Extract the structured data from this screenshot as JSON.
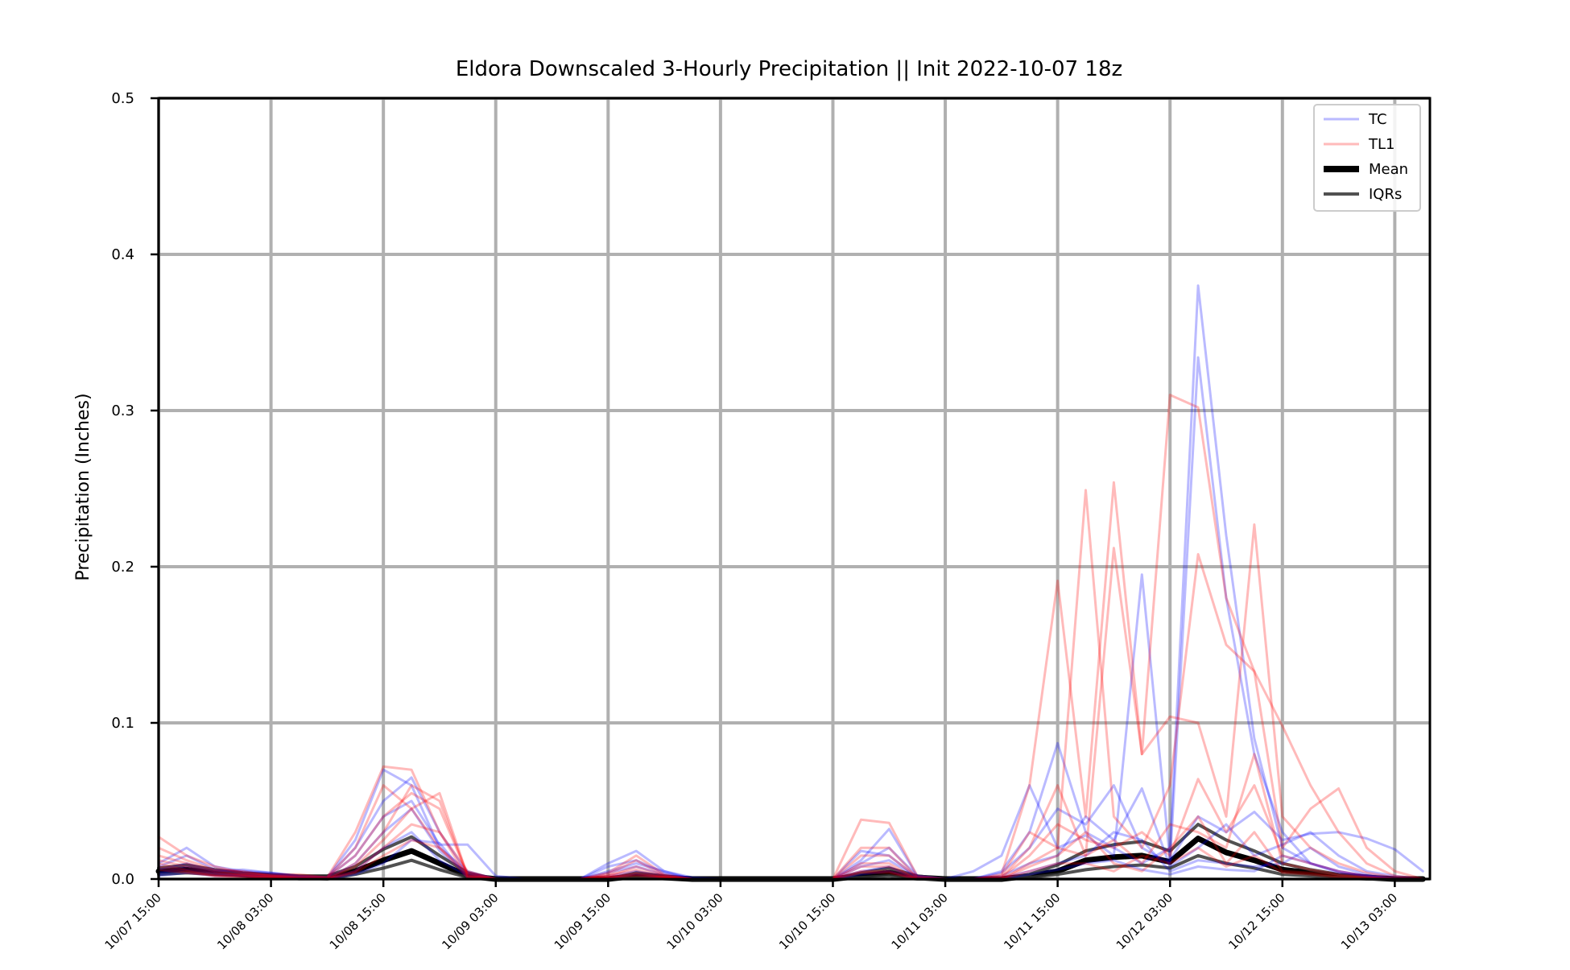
{
  "chart_data": {
    "type": "line",
    "title": "Eldora Downscaled 3-Hourly Precipitation || Init 2022-10-07 18z",
    "xlabel": "",
    "ylabel": "Precipitation (Inches)",
    "ylim": [
      0,
      0.5
    ],
    "yticks": [
      0.0,
      0.1,
      0.2,
      0.3,
      0.4,
      0.5
    ],
    "ytick_labels": [
      "0.0",
      "0.1",
      "0.2",
      "0.3",
      "0.4",
      "0.5"
    ],
    "x_unit": "hours",
    "xlim": [
      "10/07 15:00",
      "10/13 06:45"
    ],
    "xticks": [
      "10/07 15:00",
      "10/08 03:00",
      "10/08 15:00",
      "10/09 03:00",
      "10/09 15:00",
      "10/10 03:00",
      "10/10 15:00",
      "10/11 03:00",
      "10/11 15:00",
      "10/12 03:00",
      "10/12 15:00",
      "10/13 03:00"
    ],
    "grid": true,
    "legend_position": "top-right",
    "legend": [
      {
        "label": "TC",
        "color": "#0000ff",
        "style": "thin-transparent"
      },
      {
        "label": "TL1",
        "color": "#ff0000",
        "style": "thin-transparent"
      },
      {
        "label": "Mean",
        "color": "#000000",
        "style": "thick"
      },
      {
        "label": "IQRs",
        "color": "#333333",
        "style": "medium"
      }
    ],
    "colors": {
      "TC": "#0000ff",
      "TL1": "#ff0000",
      "Mean": "#000000",
      "IQRs": "#333333",
      "grid": "#b0b0b0"
    },
    "x": [
      "10/07 15:00",
      "10/07 18:00",
      "10/07 21:00",
      "10/08 00:00",
      "10/08 03:00",
      "10/08 06:00",
      "10/08 09:00",
      "10/08 12:00",
      "10/08 15:00",
      "10/08 18:00",
      "10/08 21:00",
      "10/09 00:00",
      "10/09 03:00",
      "10/09 06:00",
      "10/09 09:00",
      "10/09 12:00",
      "10/09 15:00",
      "10/09 18:00",
      "10/09 21:00",
      "10/10 00:00",
      "10/10 03:00",
      "10/10 06:00",
      "10/10 09:00",
      "10/10 12:00",
      "10/10 15:00",
      "10/10 18:00",
      "10/10 21:00",
      "10/11 00:00",
      "10/11 03:00",
      "10/11 06:00",
      "10/11 09:00",
      "10/11 12:00",
      "10/11 15:00",
      "10/11 18:00",
      "10/11 21:00",
      "10/12 00:00",
      "10/12 03:00",
      "10/12 06:00",
      "10/12 09:00",
      "10/12 12:00",
      "10/12 15:00",
      "10/12 18:00",
      "10/12 21:00",
      "10/13 00:00",
      "10/13 03:00",
      "10/13 06:00"
    ],
    "series": [
      {
        "name": "Mean",
        "group": "Mean",
        "values": [
          0.005,
          0.006,
          0.004,
          0.003,
          0.002,
          0.001,
          0.001,
          0.005,
          0.012,
          0.018,
          0.01,
          0.002,
          0,
          0,
          0,
          0,
          0,
          0.002,
          0.001,
          0,
          0,
          0,
          0,
          0,
          0,
          0.002,
          0.004,
          0.001,
          0,
          0,
          0,
          0.002,
          0.005,
          0.012,
          0.014,
          0.015,
          0.011,
          0.026,
          0.017,
          0.012,
          0.006,
          0.004,
          0.002,
          0.001,
          0,
          0
        ]
      },
      {
        "name": "IQRs",
        "group": "IQRs",
        "values": [
          0.003,
          0.004,
          0.003,
          0.002,
          0.001,
          0.001,
          0,
          0.003,
          0.007,
          0.012,
          0.006,
          0.001,
          0,
          0,
          0,
          0,
          0,
          0.001,
          0.001,
          0,
          0,
          0,
          0,
          0,
          0,
          0.001,
          0.002,
          0,
          0,
          0,
          0,
          0.001,
          0.003,
          0.006,
          0.008,
          0.009,
          0.007,
          0.015,
          0.01,
          0.007,
          0.003,
          0.002,
          0.001,
          0,
          0,
          0
        ]
      },
      {
        "name": "IQRs",
        "group": "IQRs",
        "values": [
          0.007,
          0.009,
          0.006,
          0.004,
          0.003,
          0.002,
          0.002,
          0.008,
          0.019,
          0.027,
          0.015,
          0.004,
          0,
          0,
          0,
          0,
          0,
          0.004,
          0.002,
          0,
          0,
          0,
          0,
          0,
          0,
          0.004,
          0.007,
          0.002,
          0,
          0,
          0,
          0.003,
          0.009,
          0.018,
          0.022,
          0.024,
          0.018,
          0.035,
          0.025,
          0.018,
          0.01,
          0.006,
          0.003,
          0.002,
          0,
          0
        ]
      },
      {
        "name": "TC",
        "group": "TC",
        "values": [
          0.01,
          0.02,
          0.008,
          0.005,
          0.004,
          0.002,
          0.001,
          0.025,
          0.07,
          0.06,
          0.02,
          0.005,
          0,
          0,
          0,
          0,
          0.01,
          0.018,
          0.005,
          0,
          0,
          0,
          0,
          0,
          0,
          0.018,
          0.015,
          0.001,
          0,
          0,
          0.005,
          0.03,
          0.087,
          0.03,
          0.02,
          0.01,
          0.02,
          0.38,
          0.22,
          0.09,
          0.02,
          0.01,
          0.005,
          0.002,
          0,
          0
        ]
      },
      {
        "name": "TC",
        "group": "TC",
        "values": [
          0.008,
          0.015,
          0.006,
          0.004,
          0.003,
          0.001,
          0.001,
          0.02,
          0.05,
          0.065,
          0.03,
          0.004,
          0,
          0,
          0,
          0,
          0.008,
          0.012,
          0.004,
          0,
          0,
          0,
          0,
          0,
          0,
          0.012,
          0.032,
          0.002,
          0,
          0,
          0.004,
          0.02,
          0.045,
          0.035,
          0.06,
          0.02,
          0.01,
          0.334,
          0.18,
          0.08,
          0.03,
          0.01,
          0.005,
          0.002,
          0,
          0
        ]
      },
      {
        "name": "TC",
        "group": "TC",
        "values": [
          0.006,
          0.01,
          0.005,
          0.006,
          0.004,
          0.002,
          0.001,
          0.015,
          0.04,
          0.05,
          0.022,
          0.022,
          0.002,
          0,
          0,
          0,
          0.005,
          0.01,
          0.005,
          0.001,
          0,
          0,
          0,
          0,
          0,
          0.01,
          0.02,
          0.002,
          0,
          0.005,
          0.015,
          0.06,
          0.02,
          0.028,
          0.015,
          0.195,
          0.012,
          0.04,
          0.03,
          0.043,
          0.025,
          0.029,
          0.03,
          0.026,
          0.019,
          0.005
        ]
      },
      {
        "name": "TC",
        "group": "TC",
        "values": [
          0.004,
          0.008,
          0.004,
          0.003,
          0.002,
          0.001,
          0,
          0.01,
          0.03,
          0.045,
          0.018,
          0.003,
          0,
          0,
          0,
          0,
          0.004,
          0.008,
          0.003,
          0,
          0,
          0,
          0,
          0,
          0,
          0.008,
          0.012,
          0.001,
          0,
          0,
          0.002,
          0.01,
          0.015,
          0.04,
          0.025,
          0.058,
          0.008,
          0.02,
          0.035,
          0.015,
          0.022,
          0.03,
          0.015,
          0.005,
          0.002,
          0
        ]
      },
      {
        "name": "TC",
        "group": "TC",
        "values": [
          0.003,
          0.006,
          0.003,
          0.002,
          0.002,
          0.001,
          0,
          0.005,
          0.02,
          0.03,
          0.012,
          0.002,
          0,
          0,
          0,
          0,
          0.002,
          0.005,
          0.002,
          0,
          0,
          0,
          0,
          0,
          0,
          0.005,
          0.008,
          0,
          0,
          0,
          0.001,
          0.005,
          0.01,
          0.015,
          0.03,
          0.025,
          0.005,
          0.012,
          0.01,
          0.008,
          0.01,
          0.02,
          0.008,
          0.003,
          0.001,
          0
        ]
      },
      {
        "name": "TC",
        "group": "TC",
        "values": [
          0.002,
          0.004,
          0.002,
          0.002,
          0.001,
          0,
          0,
          0.003,
          0.01,
          0.025,
          0.023,
          0.001,
          0,
          0,
          0,
          0,
          0.001,
          0.003,
          0.001,
          0,
          0,
          0,
          0,
          0,
          0,
          0.003,
          0.005,
          0,
          0,
          0,
          0,
          0.003,
          0.006,
          0.01,
          0.012,
          0.006,
          0.003,
          0.008,
          0.006,
          0.005,
          0.015,
          0.01,
          0.004,
          0.002,
          0,
          0
        ]
      },
      {
        "name": "TL1",
        "group": "TL1",
        "values": [
          0.027,
          0.015,
          0.008,
          0.004,
          0.003,
          0.003,
          0.001,
          0.03,
          0.072,
          0.07,
          0.03,
          0.005,
          0,
          0,
          0,
          0,
          0.004,
          0.015,
          0.003,
          0,
          0,
          0,
          0,
          0,
          0,
          0.038,
          0.036,
          0.002,
          0,
          0,
          0.003,
          0.06,
          0.191,
          0.04,
          0.254,
          0.08,
          0.31,
          0.302,
          0.18,
          0.133,
          0.098,
          0.06,
          0.03,
          0.01,
          0.002,
          0
        ]
      },
      {
        "name": "TL1",
        "group": "TL1",
        "values": [
          0.02,
          0.012,
          0.006,
          0.005,
          0.002,
          0.002,
          0.001,
          0.02,
          0.06,
          0.045,
          0.02,
          0.004,
          0,
          0,
          0,
          0,
          0.003,
          0.012,
          0.002,
          0,
          0,
          0,
          0,
          0,
          0,
          0.02,
          0.02,
          0.001,
          0,
          0,
          0.002,
          0.03,
          0.02,
          0.249,
          0.04,
          0.02,
          0.06,
          0.208,
          0.15,
          0.133,
          0.02,
          0.045,
          0.058,
          0.02,
          0.005,
          0
        ]
      },
      {
        "name": "TL1",
        "group": "TL1",
        "values": [
          0.015,
          0.01,
          0.005,
          0.003,
          0.002,
          0.001,
          0.001,
          0.015,
          0.04,
          0.055,
          0.045,
          0.003,
          0,
          0,
          0,
          0,
          0.002,
          0.008,
          0.002,
          0,
          0,
          0,
          0,
          0,
          0,
          0.015,
          0.015,
          0.001,
          0,
          0,
          0.001,
          0.02,
          0.06,
          0.015,
          0.212,
          0.08,
          0.104,
          0.1,
          0.04,
          0.227,
          0.04,
          0.02,
          0.01,
          0.004,
          0.001,
          0
        ]
      },
      {
        "name": "TL1",
        "group": "TL1",
        "values": [
          0.012,
          0.008,
          0.004,
          0.003,
          0.002,
          0.001,
          0,
          0.01,
          0.03,
          0.06,
          0.05,
          0.002,
          0,
          0,
          0,
          0,
          0.002,
          0.006,
          0.001,
          0,
          0,
          0,
          0,
          0,
          0,
          0.01,
          0.01,
          0,
          0,
          0,
          0.001,
          0.015,
          0.035,
          0.025,
          0.02,
          0.03,
          0.015,
          0.064,
          0.03,
          0.06,
          0.015,
          0.01,
          0.005,
          0.002,
          0,
          0
        ]
      },
      {
        "name": "TL1",
        "group": "TL1",
        "values": [
          0.01,
          0.006,
          0.003,
          0.002,
          0.001,
          0.001,
          0,
          0.008,
          0.025,
          0.045,
          0.055,
          0.002,
          0,
          0,
          0,
          0,
          0.001,
          0.004,
          0.001,
          0,
          0,
          0,
          0,
          0,
          0,
          0.008,
          0.008,
          0,
          0,
          0,
          0,
          0.01,
          0.02,
          0.015,
          0.025,
          0.01,
          0.035,
          0.03,
          0.02,
          0.08,
          0.01,
          0.006,
          0.003,
          0.001,
          0,
          0
        ]
      },
      {
        "name": "TL1",
        "group": "TL1",
        "values": [
          0.008,
          0.005,
          0.002,
          0.002,
          0.001,
          0,
          0,
          0.005,
          0.02,
          0.035,
          0.03,
          0.001,
          0,
          0,
          0,
          0,
          0.001,
          0.003,
          0.001,
          0,
          0,
          0,
          0,
          0,
          0,
          0.005,
          0.005,
          0,
          0,
          0,
          0,
          0.008,
          0.015,
          0.03,
          0.01,
          0.005,
          0.02,
          0.04,
          0.01,
          0.03,
          0.005,
          0.004,
          0.002,
          0.001,
          0,
          0
        ]
      },
      {
        "name": "TL1",
        "group": "TL1",
        "values": [
          0.006,
          0.004,
          0.002,
          0.001,
          0.001,
          0,
          0,
          0.004,
          0.015,
          0.025,
          0.02,
          0.001,
          0,
          0,
          0,
          0,
          0.001,
          0.002,
          0.001,
          0,
          0,
          0,
          0,
          0,
          0,
          0.004,
          0.004,
          0,
          0,
          0,
          0,
          0.005,
          0.01,
          0.01,
          0.005,
          0.015,
          0.01,
          0.02,
          0.008,
          0.015,
          0.004,
          0.003,
          0.001,
          0,
          0,
          0
        ]
      }
    ]
  }
}
